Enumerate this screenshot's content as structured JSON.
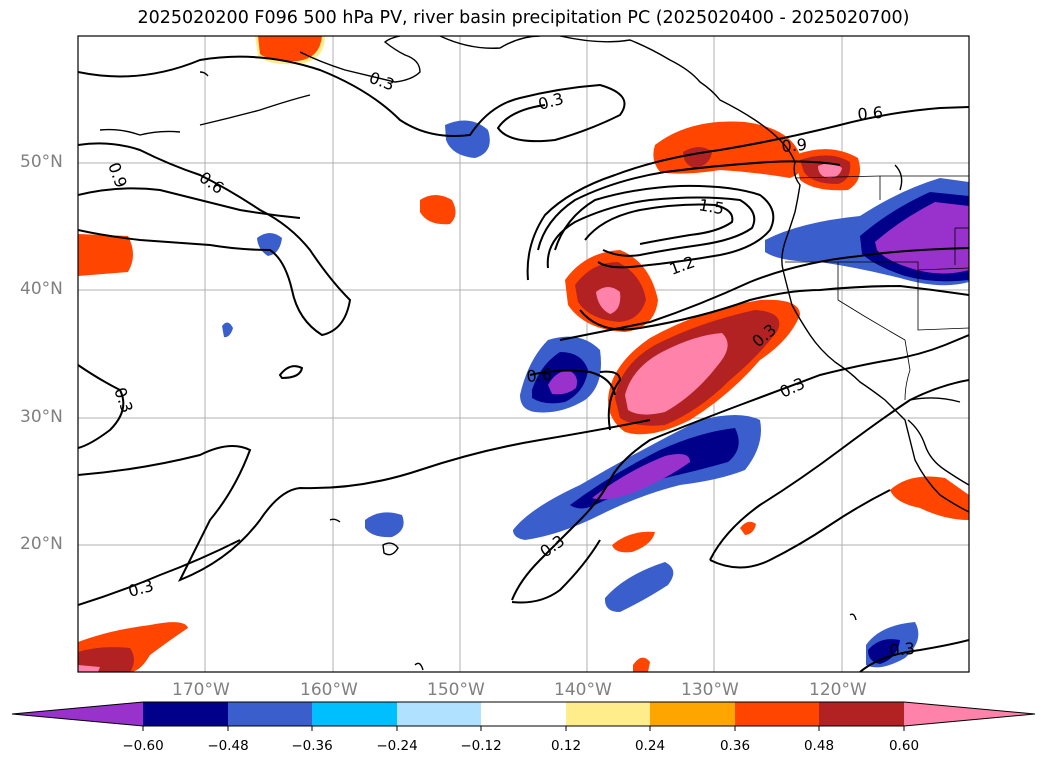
{
  "title": "2025020200 F096 500 hPa PV, river basin precipitation PC (2025020400 - 2025020700)",
  "map": {
    "lon_range": [
      -180,
      -110
    ],
    "lat_range": [
      10,
      60
    ],
    "lat_labels": [
      "50°N",
      "40°N",
      "30°N",
      "20°N"
    ],
    "lon_labels": [
      "170°W",
      "160°W",
      "150°W",
      "140°W",
      "130°W",
      "120°W"
    ],
    "contour_labels": [
      "0.3",
      "0.3",
      "0.3",
      "0.3",
      "0.3",
      "0.3",
      "0.3",
      "0.3",
      "0.6",
      "0.6",
      "0.6",
      "0.9",
      "0.9",
      "1.2",
      "1.5",
      "0.9"
    ],
    "colors": {
      "coast": "#000000",
      "grid": "#b0b0b0",
      "contour": "#000000"
    }
  },
  "colorbar": {
    "ticks": [
      "−0.60",
      "−0.48",
      "−0.36",
      "−0.24",
      "−0.12",
      "0.12",
      "0.24",
      "0.36",
      "0.48",
      "0.60"
    ],
    "colors": [
      "#9932cc",
      "#00008b",
      "#3a5fcd",
      "#00bfff",
      "#b0e2ff",
      "#ffffff",
      "#ffec8b",
      "#ffa500",
      "#ff4500",
      "#b22222",
      "#ff82ab"
    ]
  }
}
